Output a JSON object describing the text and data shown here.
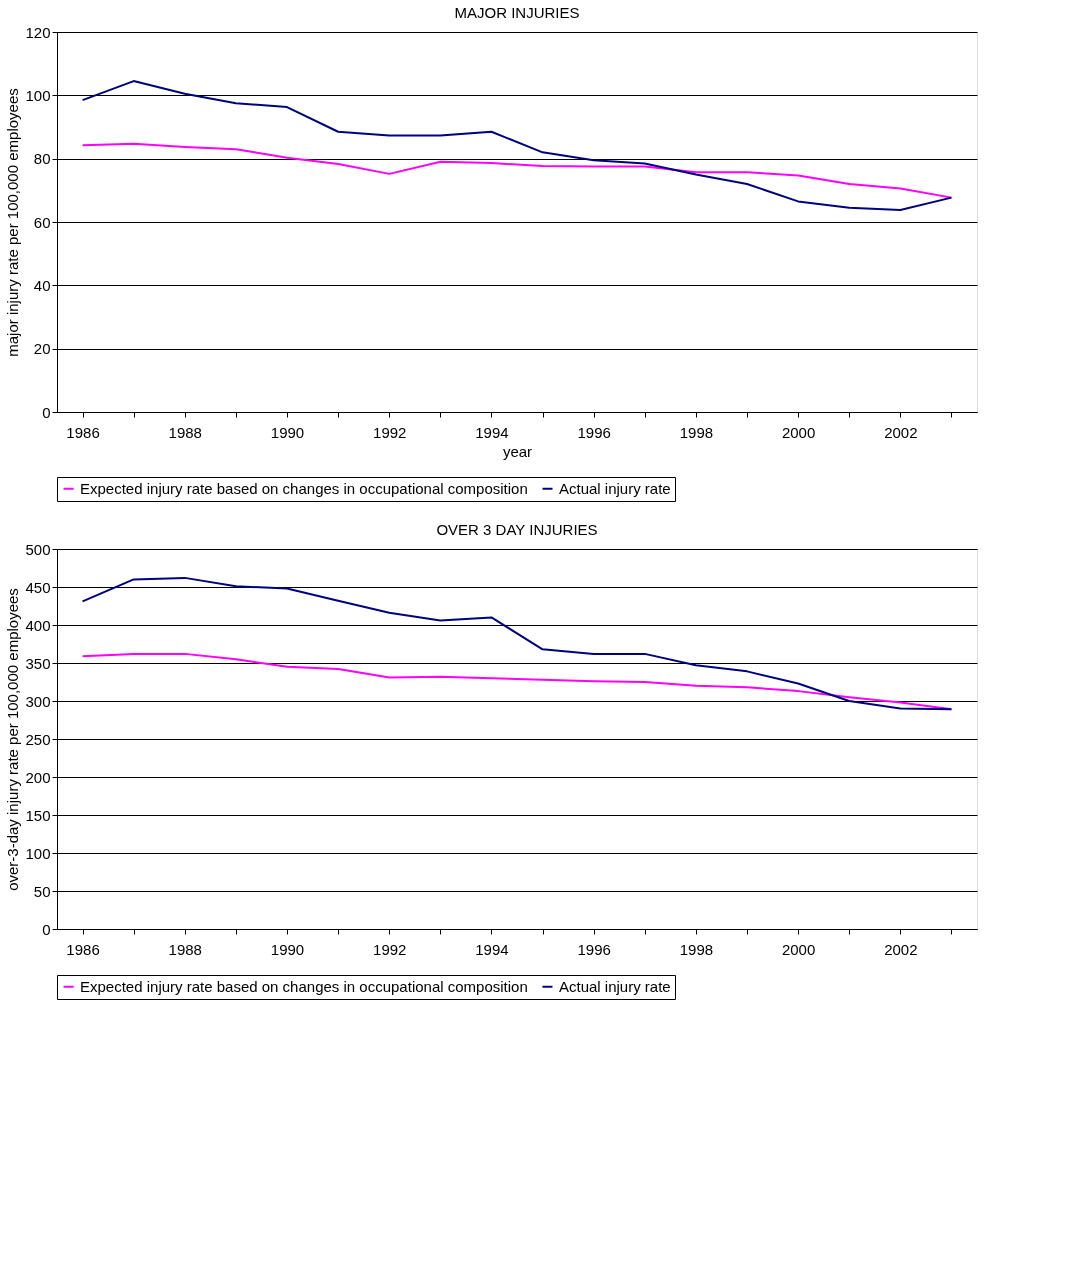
{
  "chart_data": [
    {
      "type": "line",
      "title": "MAJOR INJURIES",
      "xlabel": "year",
      "ylabel": "major injury rate per 100,000 employees",
      "categories": [
        "1986",
        null,
        "1988",
        null,
        "1990",
        null,
        "1992",
        null,
        "1994",
        null,
        "1996",
        null,
        "1998",
        null,
        "2000",
        null,
        "2002",
        null
      ],
      "series": [
        {
          "name": "Expected injury rate based on changes in occupational composition",
          "color": "#ff00ff",
          "values": [
            84.2,
            84.7,
            83.7,
            83,
            80.3,
            78.3,
            75.2,
            79,
            78.6,
            77.7,
            77.5,
            77.5,
            75.7,
            75.7,
            74.7,
            72,
            70.6,
            67.7
          ]
        },
        {
          "name": "Actual injury rate",
          "color": "#000080",
          "values": [
            98.5,
            104.5,
            100.5,
            97.5,
            96.3,
            88.5,
            87.3,
            87.3,
            88.5,
            82,
            79.5,
            78.5,
            75,
            72,
            66.5,
            64.5,
            63.8,
            67.7
          ]
        }
      ],
      "ylim": [
        0,
        120
      ],
      "yticks": [
        0,
        20,
        40,
        60,
        80,
        100,
        120
      ],
      "grid": "y",
      "legend": "bottom",
      "marker": "none",
      "line_style": "solid"
    },
    {
      "type": "line",
      "title": "OVER 3 DAY INJURIES",
      "ylabel": "over-3-day injury rate per 100,000 employees",
      "categories": [
        "1986",
        null,
        "1988",
        null,
        "1990",
        null,
        "1992",
        null,
        "1994",
        null,
        "1996",
        null,
        "1998",
        null,
        "2000",
        null,
        "2002",
        null
      ],
      "series": [
        {
          "name": "Expected injury rate based on changes in occupational composition",
          "color": "#ff00ff",
          "values": [
            359,
            362,
            362,
            355,
            345,
            342,
            331,
            332,
            330,
            328,
            326,
            325,
            320,
            318,
            313,
            305,
            298,
            289
          ]
        },
        {
          "name": "Actual injury rate",
          "color": "#000080",
          "values": [
            431,
            460,
            462,
            451,
            448,
            432,
            416,
            406,
            410,
            368,
            362,
            362,
            347,
            339,
            323,
            300,
            290,
            289
          ]
        }
      ],
      "ylim": [
        0,
        500
      ],
      "yticks": [
        0,
        50,
        100,
        150,
        200,
        250,
        300,
        350,
        400,
        450,
        500
      ],
      "grid": "y",
      "legend": "bottom",
      "marker": "none",
      "line_style": "solid"
    }
  ]
}
